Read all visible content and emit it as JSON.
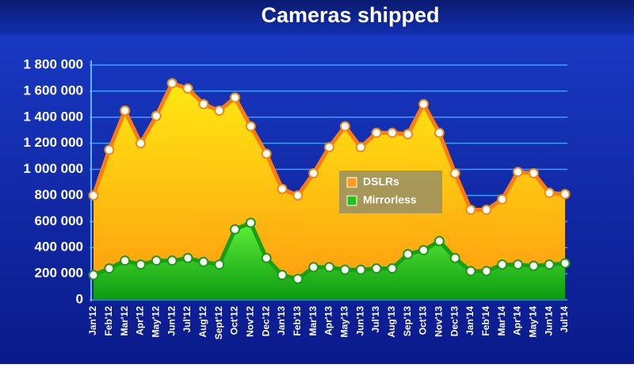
{
  "chart_data": {
    "type": "area",
    "title": "Cameras shipped",
    "categories": [
      "Jan'12",
      "Feb'12",
      "Mar'12",
      "Apr'12",
      "May'12",
      "Jun'12",
      "Jul'12",
      "Aug'12",
      "Sept'12",
      "Oct'12",
      "Nov'12",
      "Dec'12",
      "Jan'13",
      "Feb'13",
      "Mar'13",
      "Apr'13",
      "May'13",
      "Jun'13",
      "Jul'13",
      "Aug'13",
      "Sep'13",
      "Oct'13",
      "Nov'13",
      "Dec'13",
      "Jan'14",
      "Feb'14",
      "Mar'14",
      "Apr'14",
      "May'14",
      "Jun'14",
      "Jul'14"
    ],
    "series": [
      {
        "name": "DSLRs",
        "color": "#ff9a1a",
        "values": [
          800000,
          1150000,
          1450000,
          1200000,
          1410000,
          1660000,
          1620000,
          1500000,
          1450000,
          1550000,
          1330000,
          1120000,
          850000,
          800000,
          970000,
          1170000,
          1330000,
          1170000,
          1280000,
          1280000,
          1270000,
          1500000,
          1280000,
          970000,
          690000,
          690000,
          770000,
          980000,
          970000,
          820000,
          810000
        ]
      },
      {
        "name": "Mirrorless",
        "color": "#22c21a",
        "values": [
          190000,
          240000,
          300000,
          270000,
          300000,
          300000,
          320000,
          290000,
          270000,
          540000,
          590000,
          320000,
          190000,
          160000,
          250000,
          250000,
          230000,
          230000,
          240000,
          240000,
          350000,
          380000,
          450000,
          320000,
          220000,
          220000,
          270000,
          270000,
          260000,
          270000,
          280000
        ]
      }
    ],
    "ylim": [
      0,
      1800000
    ],
    "yticks": [
      0,
      {
        "value": 200000,
        "label": "200 000"
      },
      {
        "value": 400000,
        "label": "400 000"
      },
      {
        "value": 600000,
        "label": "600 000"
      },
      {
        "value": 800000,
        "label": "800 000"
      },
      {
        "value": 1000000,
        "label": "1 000 000"
      },
      {
        "value": 1200000,
        "label": "1 200 000"
      },
      {
        "value": 1400000,
        "label": "1 400 000"
      },
      {
        "value": 1600000,
        "label": "1 600 000"
      },
      {
        "value": 1800000,
        "label": "1 800 000"
      }
    ],
    "grid": true
  }
}
